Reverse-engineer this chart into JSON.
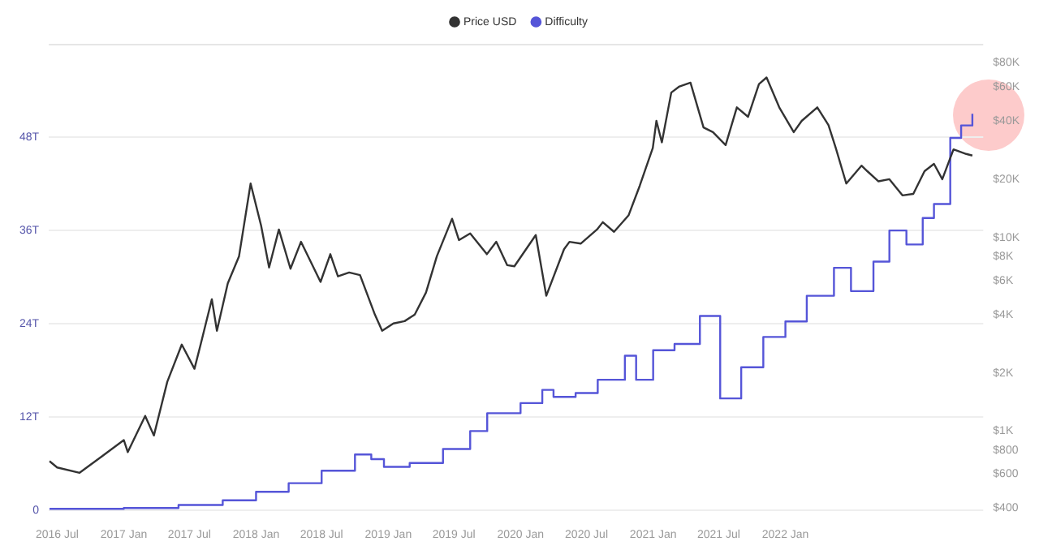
{
  "chart_data": {
    "type": "line",
    "legend": "top",
    "grid": "y",
    "marker": "none",
    "log": "y2",
    "xlim": [
      "2016-06-08",
      "2023-07-01"
    ],
    "xticks": [
      {
        "value": "2016-07-01",
        "label": "2016 Jul"
      },
      {
        "value": "2017-01-01",
        "label": "2017 Jan"
      },
      {
        "value": "2017-07-01",
        "label": "2017 Jul"
      },
      {
        "value": "2018-01-01",
        "label": "2018 Jan"
      },
      {
        "value": "2018-07-01",
        "label": "2018 Jul"
      },
      {
        "value": "2019-01-01",
        "label": "2019 Jan"
      },
      {
        "value": "2019-07-01",
        "label": "2019 Jul"
      },
      {
        "value": "2020-01-01",
        "label": "2020 Jan"
      },
      {
        "value": "2020-07-01",
        "label": "2020 Jul"
      },
      {
        "value": "2021-01-01",
        "label": "2021 Jan"
      },
      {
        "value": "2021-07-01",
        "label": "2021 Jul"
      },
      {
        "value": "2022-01-01",
        "label": "2022 Jan"
      }
    ],
    "ylim": [
      0,
      60
    ],
    "yticks": [
      {
        "value": 0,
        "label": "0"
      },
      {
        "value": 12,
        "label": "12T"
      },
      {
        "value": 24,
        "label": "24T"
      },
      {
        "value": 36,
        "label": "36T"
      },
      {
        "value": 48,
        "label": "48T"
      }
    ],
    "y2lim": [
      390,
      100000
    ],
    "y2ticks": [
      {
        "value": 400,
        "label": "$400"
      },
      {
        "value": 600,
        "label": "$600"
      },
      {
        "value": 800,
        "label": "$800"
      },
      {
        "value": 1000,
        "label": "$1K"
      },
      {
        "value": 2000,
        "label": "$2K"
      },
      {
        "value": 4000,
        "label": "$4K"
      },
      {
        "value": 6000,
        "label": "$6K"
      },
      {
        "value": 8000,
        "label": "$8K"
      },
      {
        "value": 10000,
        "label": "$10K"
      },
      {
        "value": 20000,
        "label": "$20K"
      },
      {
        "value": 40000,
        "label": "$40K"
      },
      {
        "value": 60000,
        "label": "$60K"
      },
      {
        "value": 80000,
        "label": "$80K"
      }
    ],
    "series": [
      {
        "name": "Price USD",
        "color": "#333333",
        "axis": "y2",
        "x": [
          "2016-06-10",
          "2016-07-01",
          "2016-09-01",
          "2016-11-01",
          "2017-01-01",
          "2017-01-12",
          "2017-03-01",
          "2017-03-25",
          "2017-05-01",
          "2017-06-10",
          "2017-07-15",
          "2017-08-01",
          "2017-09-01",
          "2017-09-15",
          "2017-10-15",
          "2017-11-15",
          "2017-12-17",
          "2018-01-15",
          "2018-02-06",
          "2018-03-05",
          "2018-04-06",
          "2018-05-05",
          "2018-06-28",
          "2018-07-25",
          "2018-08-15",
          "2018-09-15",
          "2018-10-15",
          "2018-11-25",
          "2018-12-15",
          "2019-01-15",
          "2019-02-15",
          "2019-03-15",
          "2019-04-15",
          "2019-05-15",
          "2019-06-26",
          "2019-07-15",
          "2019-08-15",
          "2019-09-30",
          "2019-10-26",
          "2019-11-25",
          "2019-12-15",
          "2020-02-12",
          "2020-03-12",
          "2020-04-30",
          "2020-05-15",
          "2020-06-15",
          "2020-07-30",
          "2020-08-15",
          "2020-09-15",
          "2020-10-25",
          "2020-11-25",
          "2020-12-31",
          "2021-01-10",
          "2021-01-25",
          "2021-02-20",
          "2021-03-13",
          "2021-04-14",
          "2021-05-20",
          "2021-06-15",
          "2021-07-20",
          "2021-08-20",
          "2021-09-20",
          "2021-10-20",
          "2021-11-10",
          "2021-12-15",
          "2022-01-24",
          "2022-02-15",
          "2022-03-30",
          "2022-04-30",
          "2022-05-20",
          "2022-06-18",
          "2022-07-30",
          "2022-08-15",
          "2022-09-15",
          "2022-10-15",
          "2022-11-20",
          "2022-12-20",
          "2023-01-20",
          "2023-02-15",
          "2023-03-10",
          "2023-04-10",
          "2023-05-15",
          "2023-06-01"
        ],
        "values": [
          700,
          650,
          610,
          740,
          900,
          780,
          1200,
          950,
          1800,
          2800,
          2100,
          2800,
          4800,
          3300,
          5800,
          8000,
          19000,
          11500,
          7000,
          11000,
          6900,
          9500,
          5900,
          8200,
          6300,
          6600,
          6400,
          4000,
          3300,
          3600,
          3700,
          4000,
          5200,
          8000,
          12500,
          9700,
          10500,
          8200,
          9500,
          7200,
          7100,
          10300,
          5000,
          8700,
          9500,
          9300,
          11000,
          12000,
          10700,
          13000,
          18500,
          29000,
          40000,
          31000,
          56000,
          60000,
          63000,
          37000,
          35000,
          30000,
          47000,
          42000,
          62000,
          67000,
          47000,
          35000,
          40000,
          47000,
          38000,
          29000,
          19000,
          23500,
          22000,
          19500,
          20000,
          16500,
          16800,
          22000,
          24000,
          20000,
          28500,
          27000,
          26500
        ]
      },
      {
        "name": "Difficulty",
        "color": "#5555d8",
        "axis": "y",
        "type": "step",
        "x": [
          "2016-06-10",
          "2017-01-01",
          "2017-06-01",
          "2017-10-01",
          "2018-01-01",
          "2018-04-01",
          "2018-07-01",
          "2018-10-01",
          "2018-11-15",
          "2018-12-20",
          "2019-03-01",
          "2019-06-01",
          "2019-08-15",
          "2019-10-01",
          "2020-01-01",
          "2020-03-01",
          "2020-04-01",
          "2020-06-01",
          "2020-08-01",
          "2020-10-15",
          "2020-11-15",
          "2021-01-01",
          "2021-03-01",
          "2021-05-10",
          "2021-07-05",
          "2021-09-01",
          "2021-11-01",
          "2022-01-01",
          "2022-03-01",
          "2022-05-15",
          "2022-07-01",
          "2022-09-01",
          "2022-10-15",
          "2022-12-01",
          "2023-01-15",
          "2023-02-15",
          "2023-04-01",
          "2023-05-01",
          "2023-06-01"
        ],
        "values": [
          0.2,
          0.3,
          0.7,
          1.3,
          2.4,
          3.5,
          5.1,
          7.2,
          6.6,
          5.6,
          6.1,
          7.9,
          10.2,
          12.5,
          13.8,
          15.5,
          14.6,
          15.1,
          16.8,
          19.9,
          16.8,
          20.6,
          21.4,
          25,
          14.4,
          18.4,
          22.3,
          24.3,
          27.6,
          31.2,
          28.2,
          32,
          36,
          34.2,
          37.6,
          39.4,
          47.9,
          49.5,
          51
        ]
      }
    ]
  }
}
